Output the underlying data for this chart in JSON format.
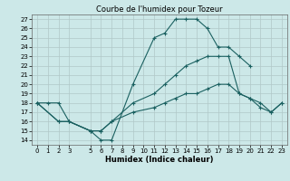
{
  "title": "Courbe de l'humidex pour Tozeur",
  "xlabel": "Humidex (Indice chaleur)",
  "background_color": "#cce8e8",
  "grid_color": "#b0c8c8",
  "line_color": "#1a6060",
  "xlim": [
    -0.5,
    23.5
  ],
  "ylim": [
    13.5,
    27.5
  ],
  "xticks": [
    0,
    1,
    2,
    3,
    5,
    6,
    7,
    8,
    9,
    10,
    11,
    12,
    13,
    14,
    15,
    16,
    17,
    18,
    19,
    20,
    21,
    22,
    23
  ],
  "yticks": [
    14,
    15,
    16,
    17,
    18,
    19,
    20,
    21,
    22,
    23,
    24,
    25,
    26,
    27
  ],
  "lines": [
    {
      "x": [
        0,
        1,
        2,
        3,
        5,
        6,
        7,
        9,
        11,
        12,
        13,
        14,
        15,
        16,
        17,
        18,
        19,
        20
      ],
      "y": [
        18,
        18,
        18,
        16,
        15,
        14,
        14,
        20,
        25,
        25.5,
        27,
        27,
        27,
        26,
        24,
        24,
        23,
        22
      ]
    },
    {
      "x": [
        0,
        2,
        3,
        5,
        6,
        7,
        9,
        11,
        12,
        13,
        14,
        15,
        16,
        17,
        18,
        19,
        20,
        21,
        22,
        23
      ],
      "y": [
        18,
        16,
        16,
        15,
        15,
        16,
        18,
        19,
        20,
        21,
        22,
        22.5,
        23,
        23,
        23,
        19,
        18.5,
        18,
        17,
        18
      ]
    },
    {
      "x": [
        0,
        2,
        3,
        5,
        6,
        7,
        9,
        11,
        12,
        13,
        14,
        15,
        16,
        17,
        18,
        19,
        20,
        21,
        22,
        23
      ],
      "y": [
        18,
        16,
        16,
        15,
        15,
        16,
        17,
        17.5,
        18,
        18.5,
        19,
        19,
        19.5,
        20,
        20,
        19,
        18.5,
        17.5,
        17,
        18
      ]
    }
  ]
}
